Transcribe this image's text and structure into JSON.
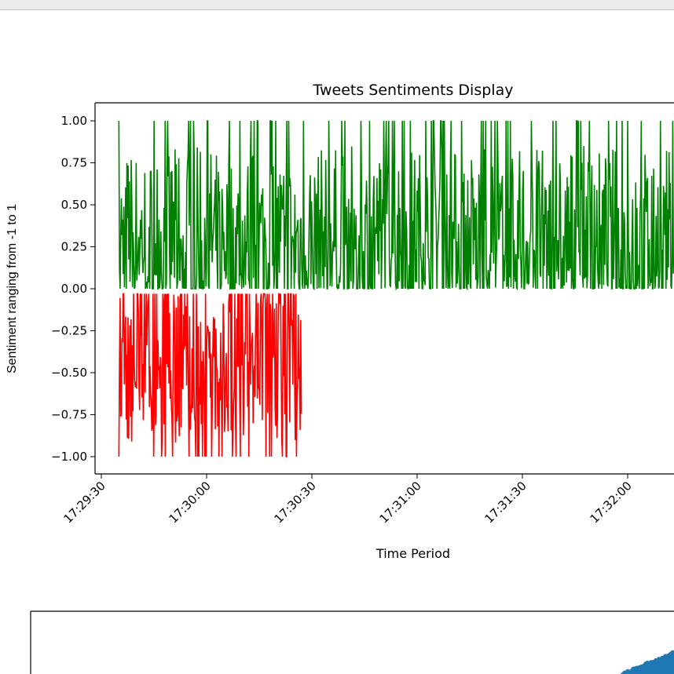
{
  "window": {
    "topbar": ""
  },
  "chart_data": [
    {
      "type": "line",
      "title": "Tweets Sentiments Display",
      "xlabel": "Time Period",
      "ylabel": "Sentiment ranging from -1 to 1",
      "ylim": [
        -1.1,
        1.1
      ],
      "xlim": [
        "17:29:30",
        "17:32:15"
      ],
      "x_ticks": [
        "17:29:30",
        "17:30:00",
        "17:30:30",
        "17:31:00",
        "17:31:30",
        "17:32:00"
      ],
      "y_ticks": [
        "1.00",
        "0.75",
        "0.50",
        "0.25",
        "0.00",
        "−0.25",
        "−0.50",
        "−0.75",
        "−1.00"
      ],
      "grid": false,
      "series": [
        {
          "color": "#008000",
          "x_range": [
            "17:29:35",
            "17:32:15"
          ],
          "y_range": [
            0.0,
            1.0
          ]
        },
        {
          "color": "#ff0000",
          "x_range": [
            "17:29:35",
            "17:30:27"
          ],
          "y_range": [
            -1.0,
            0.0
          ]
        }
      ]
    },
    {
      "type": "area",
      "series": [
        {
          "color": "#1f77b4"
        }
      ]
    }
  ]
}
